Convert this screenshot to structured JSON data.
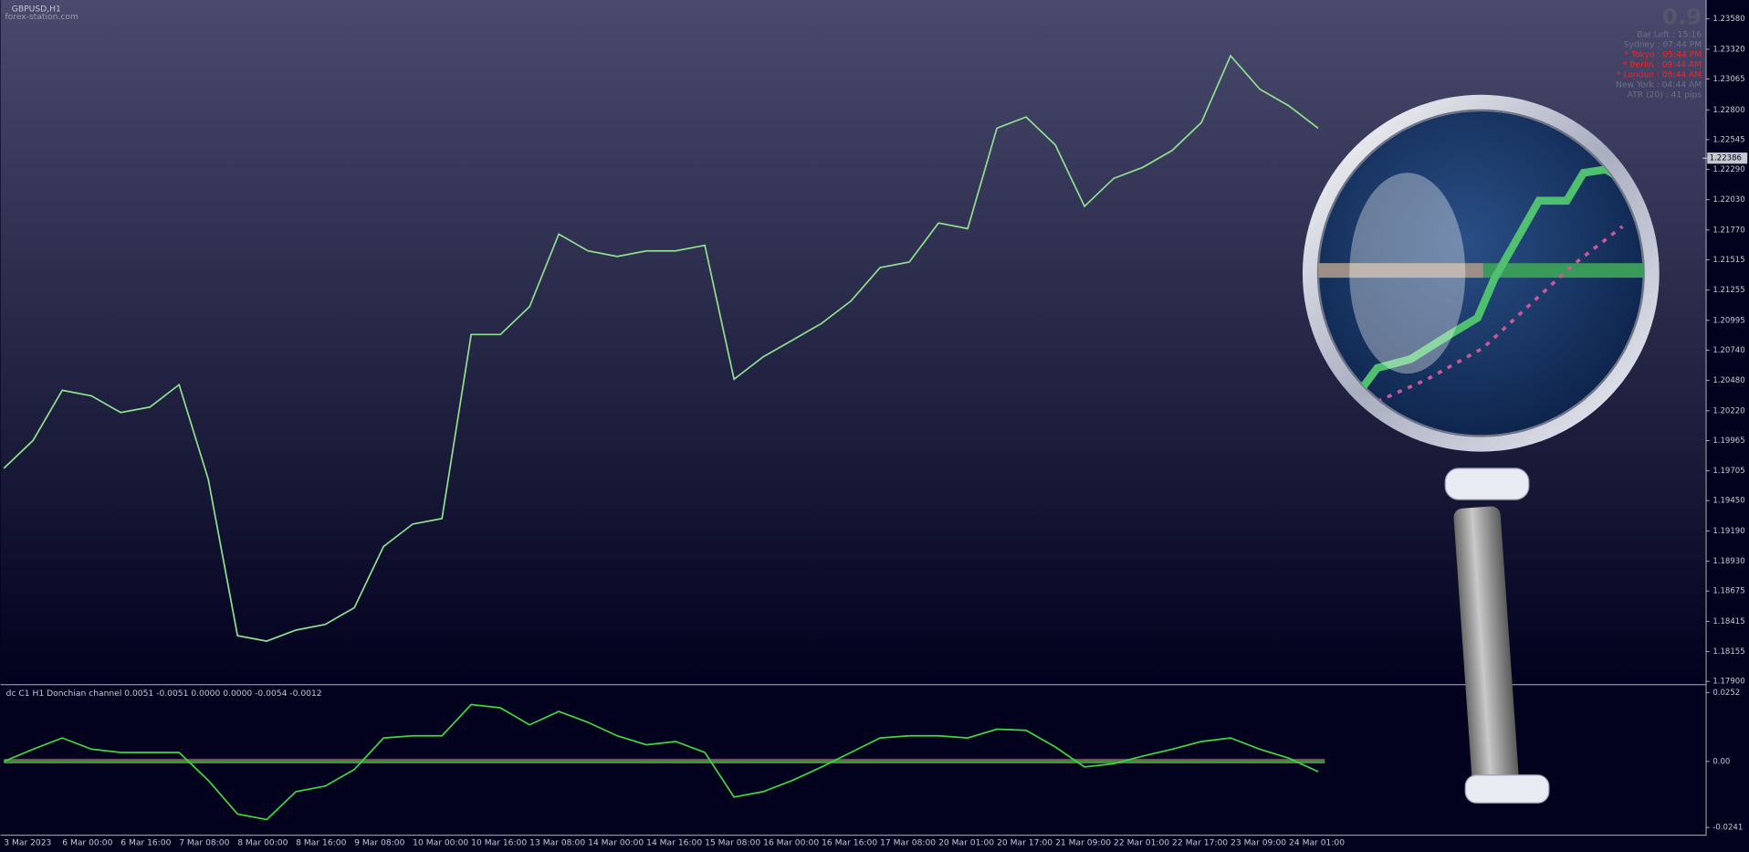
{
  "header": {
    "symbol": "GBPUSD,H1",
    "watermark": "forex-station.com",
    "spread": "0.9",
    "info": [
      "Bar Left : 15:16",
      "Sydney : 07:44 PM",
      "* Tokyo : 05:44 PM",
      "* Berlin : 09:44 AM",
      "* London : 08:44 AM",
      "New York : 04:44 AM",
      "ATR (20) : 41 pips"
    ]
  },
  "chart_data": [
    {
      "type": "line",
      "color": "#8fe08f",
      "categories": [
        "3 Mar 2023",
        null,
        "6 Mar 00:00",
        null,
        "6 Mar 16:00",
        null,
        "7 Mar 08:00",
        null,
        "8 Mar 00:00",
        null,
        "8 Mar 16:00",
        null,
        "9 Mar 08:00",
        null,
        "10 Mar 00:00",
        null,
        "10 Mar 16:00",
        null,
        "13 Mar 08:00",
        null,
        "14 Mar 00:00",
        null,
        "14 Mar 16:00",
        null,
        "15 Mar 08:00",
        null,
        "16 Mar 00:00",
        null,
        "16 Mar 16:00",
        null,
        "17 Mar 08:00",
        null,
        "20 Mar 01:00",
        null,
        "20 Mar 17:00",
        null,
        "21 Mar 09:00",
        null,
        "22 Mar 01:00",
        null,
        "22 Mar 17:00",
        null,
        "23 Mar 09:00",
        null,
        "24 Mar 01:00",
        null
      ],
      "values": [
        1.19727,
        1.19966,
        1.20396,
        1.20348,
        1.20205,
        1.20252,
        1.20444,
        1.19631,
        1.18292,
        1.18245,
        1.1834,
        1.18388,
        1.18532,
        1.19057,
        1.19249,
        1.19296,
        1.20874,
        1.20874,
        1.21113,
        1.21735,
        1.21591,
        1.21543,
        1.21591,
        1.21591,
        1.21639,
        1.20491,
        1.20683,
        1.20826,
        1.2097,
        1.21161,
        1.21448,
        1.21495,
        1.2183,
        1.21782,
        1.22643,
        1.22739,
        1.22499,
        1.21973,
        1.22213,
        1.22308,
        1.22452,
        1.22691,
        1.23264,
        1.22978,
        1.22834,
        1.22643
      ],
      "current_price": 1.22386,
      "ylim": [
        1.17881,
        1.23723
      ],
      "yticks": [
        {
          "value": 1.2358,
          "label": "1.23580"
        },
        {
          "value": 1.2332,
          "label": "1.23320"
        },
        1.23065,
        {
          "value": 1.228,
          "label": "1.22800"
        },
        1.22545,
        {
          "value": 1.2229,
          "label": "1.22290"
        },
        {
          "value": 1.2203,
          "label": "1.22030"
        },
        {
          "value": 1.2177,
          "label": "1.21770"
        },
        1.21515,
        1.21255,
        1.20995,
        {
          "value": 1.2074,
          "label": "1.20740"
        },
        {
          "value": 1.2048,
          "label": "1.20480"
        },
        {
          "value": 1.2022,
          "label": "1.20220"
        },
        1.19965,
        1.19705,
        {
          "value": 1.1945,
          "label": "1.19450"
        },
        {
          "value": 1.1919,
          "label": "1.19190"
        },
        {
          "value": 1.1893,
          "label": "1.18930"
        },
        1.18675,
        1.18415,
        1.18155,
        {
          "value": 1.179,
          "label": "1.17900"
        }
      ]
    },
    {
      "type": "line",
      "color": "#3ed83e",
      "title": "dc C1 H1 Donchian channel 0.0051 -0.0051 0.0000 0.0000 -0.0054 -0.0012",
      "values": [
        0,
        0.0045,
        0.0086,
        0.0045,
        0.0033,
        0.0033,
        0.0033,
        -0.0069,
        -0.0192,
        -0.0212,
        -0.011,
        -0.009,
        -0.0029,
        0.0086,
        0.0094,
        0.0094,
        0.0208,
        0.0196,
        0.0134,
        0.0183,
        0.0143,
        0.0094,
        0.0061,
        0.0073,
        0.0033,
        -0.013,
        -0.011,
        -0.0069,
        -0.002,
        0.0033,
        0.0086,
        0.0094,
        0.0094,
        0.0086,
        0.0118,
        0.0114,
        0.0053,
        -0.002,
        -0.0008,
        0.002,
        0.0045,
        0.0073,
        0.0086,
        0.0045,
        0.0012,
        -0.0037
      ],
      "ylim": [
        -0.02736,
        0.02764
      ],
      "yticks": [
        0.0252,
        {
          "value": 0,
          "label": "0.00"
        },
        -0.0241
      ]
    }
  ]
}
